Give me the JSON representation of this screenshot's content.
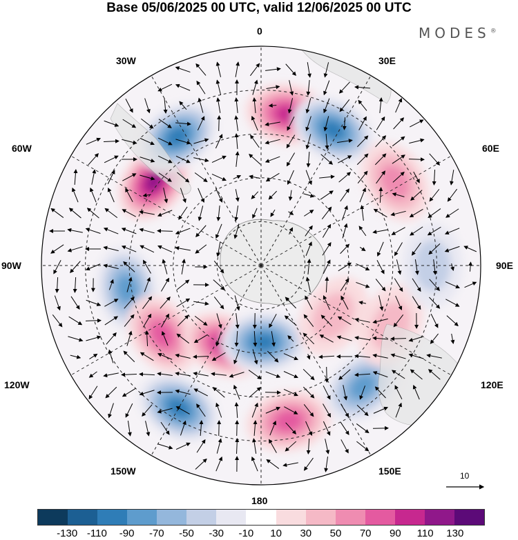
{
  "title": "Base 05/06/2025 00 UTC, valid 12/06/2025 00 UTC",
  "brand": {
    "name": "MODES",
    "mark": "®"
  },
  "longitude_labels": {
    "top": "0",
    "bottom": "180",
    "l30w": "30W",
    "l60w": "60W",
    "l90w": "90W",
    "l120w": "120W",
    "l150w": "150W",
    "l30e": "30E",
    "l60e": "60E",
    "l90e": "90E",
    "l120e": "120E",
    "l150e": "150E"
  },
  "vector_scale": {
    "label": "10",
    "reference_magnitude": 10
  },
  "colorbar": {
    "colors": [
      "#0d3a5c",
      "#1c5f93",
      "#2f7db7",
      "#5e9ccd",
      "#94b7dc",
      "#c3cfe6",
      "#e8e8f2",
      "#ffffff",
      "#f9dcdf",
      "#f5b9c6",
      "#ef8cb1",
      "#e45aa0",
      "#c7288f",
      "#90188a",
      "#5c0a78"
    ],
    "ticks": [
      "-130",
      "-110",
      "-90",
      "-70",
      "-50",
      "-30",
      "-10",
      "10",
      "30",
      "50",
      "70",
      "90",
      "110",
      "130"
    ]
  },
  "map_data": {
    "projection": "south polar stereographic",
    "field": "anomaly (shaded) with wind vectors",
    "anomaly_centers": [
      {
        "lon_deg": -52,
        "value": 130,
        "sign": "positive"
      },
      {
        "lon_deg": -33,
        "value": -100,
        "sign": "negative"
      },
      {
        "lon_deg": 10,
        "value": 100,
        "sign": "positive"
      },
      {
        "lon_deg": 28,
        "value": -100,
        "sign": "negative"
      },
      {
        "lon_deg": 58,
        "value": 70,
        "sign": "positive"
      },
      {
        "lon_deg": -100,
        "value": -80,
        "sign": "negative"
      },
      {
        "lon_deg": -125,
        "value": 80,
        "sign": "positive"
      },
      {
        "lon_deg": -155,
        "value": 100,
        "sign": "positive"
      },
      {
        "lon_deg": 178,
        "value": -100,
        "sign": "negative"
      },
      {
        "lon_deg": -150,
        "value": -110,
        "sign": "negative"
      },
      {
        "lon_deg": 170,
        "value": 80,
        "sign": "positive"
      },
      {
        "lon_deg": 140,
        "value": -90,
        "sign": "negative"
      },
      {
        "lon_deg": 115,
        "value": 50,
        "sign": "positive"
      },
      {
        "lon_deg": 125,
        "value": 40,
        "sign": "positive"
      },
      {
        "lon_deg": 90,
        "value": -40,
        "sign": "negative"
      }
    ]
  }
}
